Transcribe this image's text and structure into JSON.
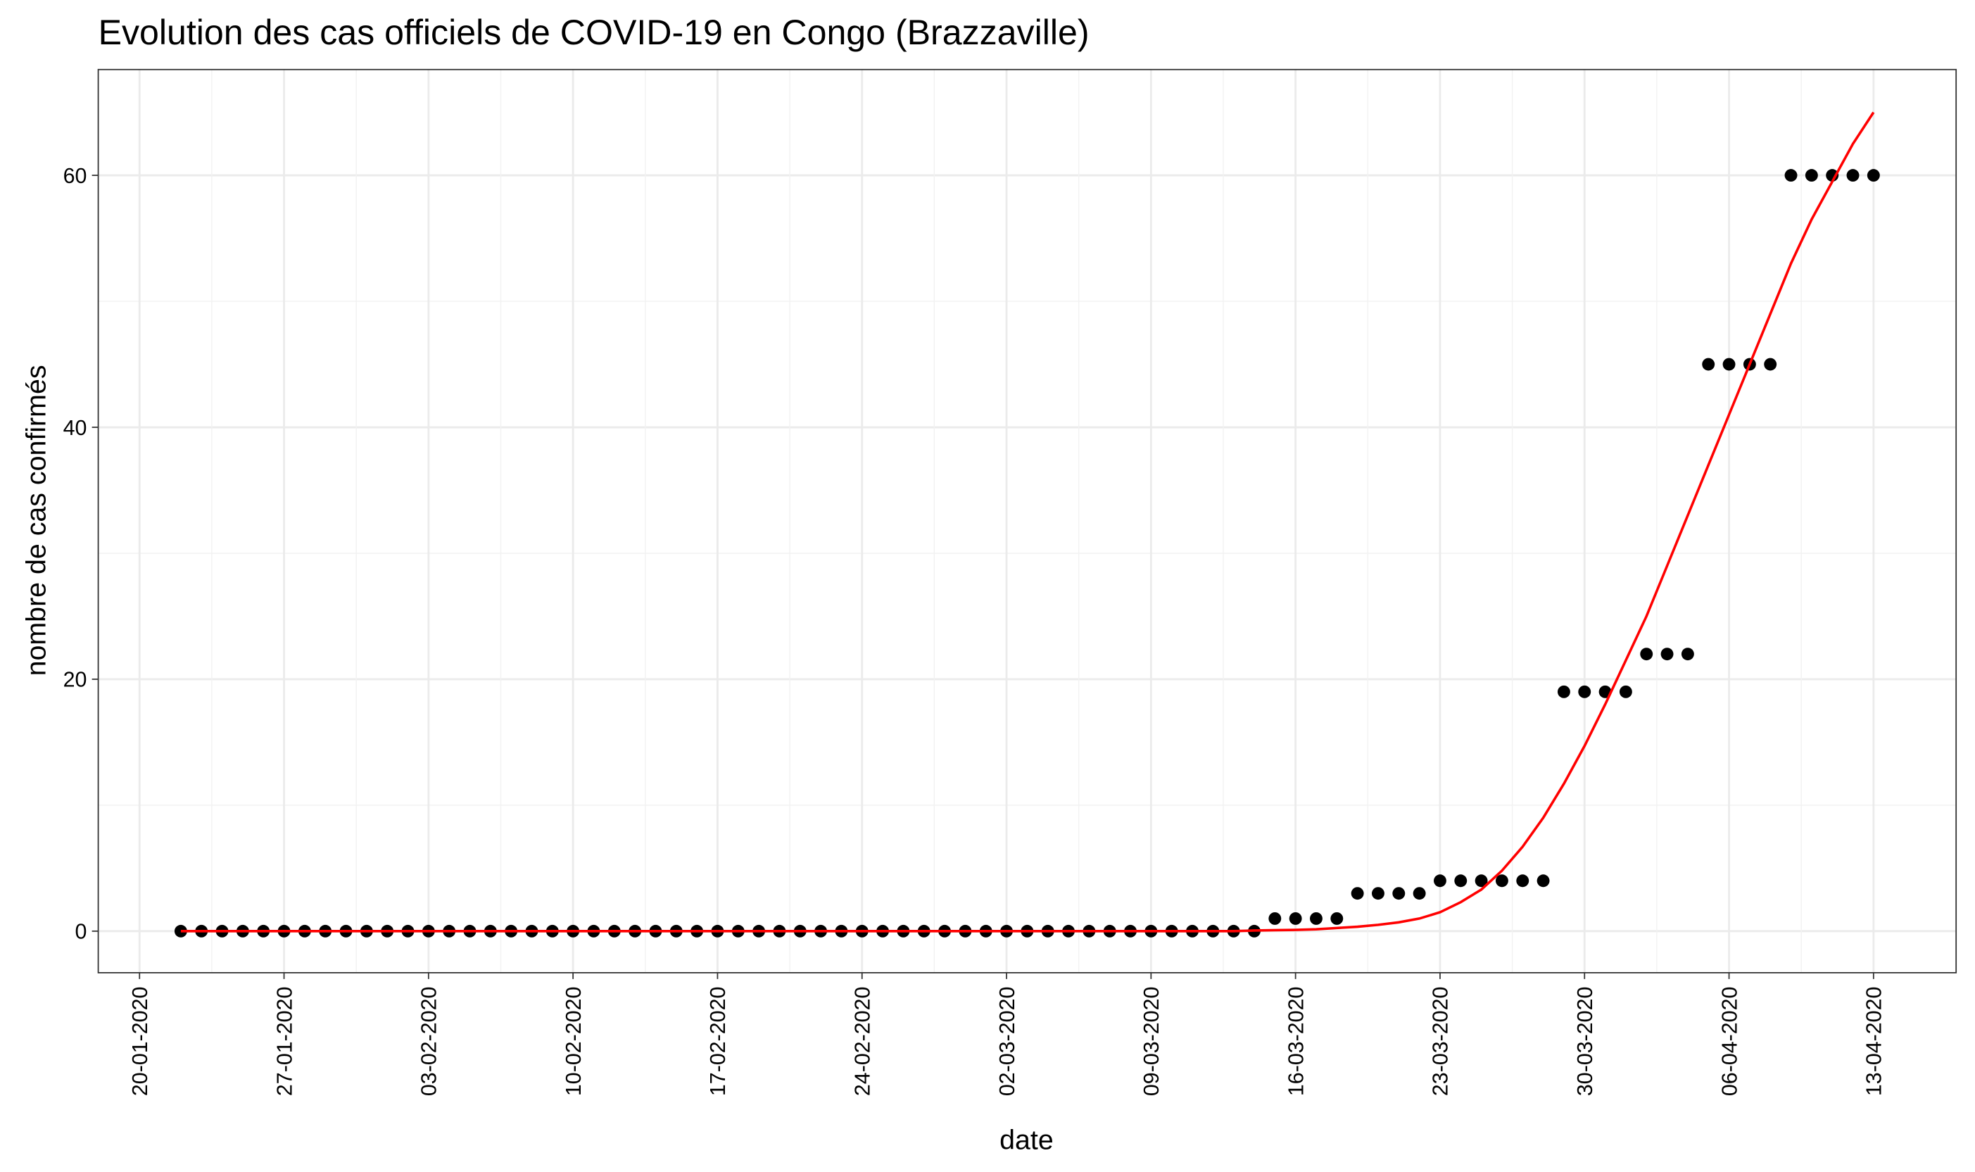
{
  "chart_data": {
    "type": "scatter",
    "title": "Evolution des cas officiels de COVID-19 en Congo (Brazzaville)",
    "x_label": "date",
    "y_label": "nombre de cas confirmés",
    "x": [
      "22-01-2020",
      "23-01-2020",
      "24-01-2020",
      "25-01-2020",
      "26-01-2020",
      "27-01-2020",
      "28-01-2020",
      "29-01-2020",
      "30-01-2020",
      "31-01-2020",
      "01-02-2020",
      "02-02-2020",
      "03-02-2020",
      "04-02-2020",
      "05-02-2020",
      "06-02-2020",
      "07-02-2020",
      "08-02-2020",
      "09-02-2020",
      "10-02-2020",
      "11-02-2020",
      "12-02-2020",
      "13-02-2020",
      "14-02-2020",
      "15-02-2020",
      "16-02-2020",
      "17-02-2020",
      "18-02-2020",
      "19-02-2020",
      "20-02-2020",
      "21-02-2020",
      "22-02-2020",
      "23-02-2020",
      "24-02-2020",
      "25-02-2020",
      "26-02-2020",
      "27-02-2020",
      "28-02-2020",
      "29-02-2020",
      "01-03-2020",
      "02-03-2020",
      "03-03-2020",
      "04-03-2020",
      "05-03-2020",
      "06-03-2020",
      "07-03-2020",
      "08-03-2020",
      "09-03-2020",
      "10-03-2020",
      "11-03-2020",
      "12-03-2020",
      "13-03-2020",
      "14-03-2020",
      "15-03-2020",
      "16-03-2020",
      "17-03-2020",
      "18-03-2020",
      "19-03-2020",
      "20-03-2020",
      "21-03-2020",
      "22-03-2020",
      "23-03-2020",
      "24-03-2020",
      "25-03-2020",
      "26-03-2020",
      "27-03-2020",
      "28-03-2020",
      "29-03-2020",
      "30-03-2020",
      "31-03-2020",
      "01-04-2020",
      "02-04-2020",
      "03-04-2020",
      "04-04-2020",
      "05-04-2020",
      "06-04-2020",
      "07-04-2020",
      "08-04-2020",
      "09-04-2020",
      "10-04-2020",
      "11-04-2020",
      "12-04-2020",
      "13-04-2020"
    ],
    "series": [
      {
        "mark": "point",
        "color": "#000000",
        "values": [
          0,
          0,
          0,
          0,
          0,
          0,
          0,
          0,
          0,
          0,
          0,
          0,
          0,
          0,
          0,
          0,
          0,
          0,
          0,
          0,
          0,
          0,
          0,
          0,
          0,
          0,
          0,
          0,
          0,
          0,
          0,
          0,
          0,
          0,
          0,
          0,
          0,
          0,
          0,
          0,
          0,
          0,
          0,
          0,
          0,
          0,
          0,
          0,
          0,
          0,
          0,
          0,
          0,
          1,
          1,
          1,
          1,
          3,
          3,
          3,
          3,
          4,
          4,
          4,
          4,
          4,
          4,
          19,
          19,
          19,
          19,
          22,
          22,
          22,
          45,
          45,
          45,
          45,
          60,
          60,
          60,
          60,
          60
        ]
      },
      {
        "mark": "line",
        "color": "#ff0000",
        "values": [
          0,
          0,
          0,
          0,
          0,
          0,
          0,
          0,
          0,
          0,
          0,
          0,
          0,
          0,
          0,
          0,
          0,
          0,
          0,
          0,
          0,
          0,
          0,
          0,
          0,
          0,
          0,
          0,
          0,
          0,
          0,
          0,
          0,
          0,
          0,
          0,
          0,
          0,
          0,
          0,
          0,
          0,
          0,
          0,
          0,
          0,
          0,
          0,
          0,
          0,
          0,
          0,
          0.05,
          0.08,
          0.1,
          0.15,
          0.25,
          0.35,
          0.5,
          0.7,
          1,
          1.5,
          2.3,
          3.3,
          4.8,
          6.7,
          9,
          11.7,
          14.7,
          18,
          21.5,
          25,
          29,
          33,
          37,
          41,
          45,
          49,
          53,
          56.5,
          59.5,
          62.5,
          65
        ]
      }
    ],
    "xlim": [
      "18-01-2020",
      "17-04-2020"
    ],
    "xticks": [
      "20-01-2020",
      "27-01-2020",
      "03-02-2020",
      "10-02-2020",
      "17-02-2020",
      "24-02-2020",
      "02-03-2020",
      "09-03-2020",
      "16-03-2020",
      "23-03-2020",
      "30-03-2020",
      "06-04-2020",
      "13-04-2020"
    ],
    "ylim": [
      -3.3,
      68.4
    ],
    "yticks": [
      0,
      20,
      40,
      60
    ],
    "grid": true
  }
}
